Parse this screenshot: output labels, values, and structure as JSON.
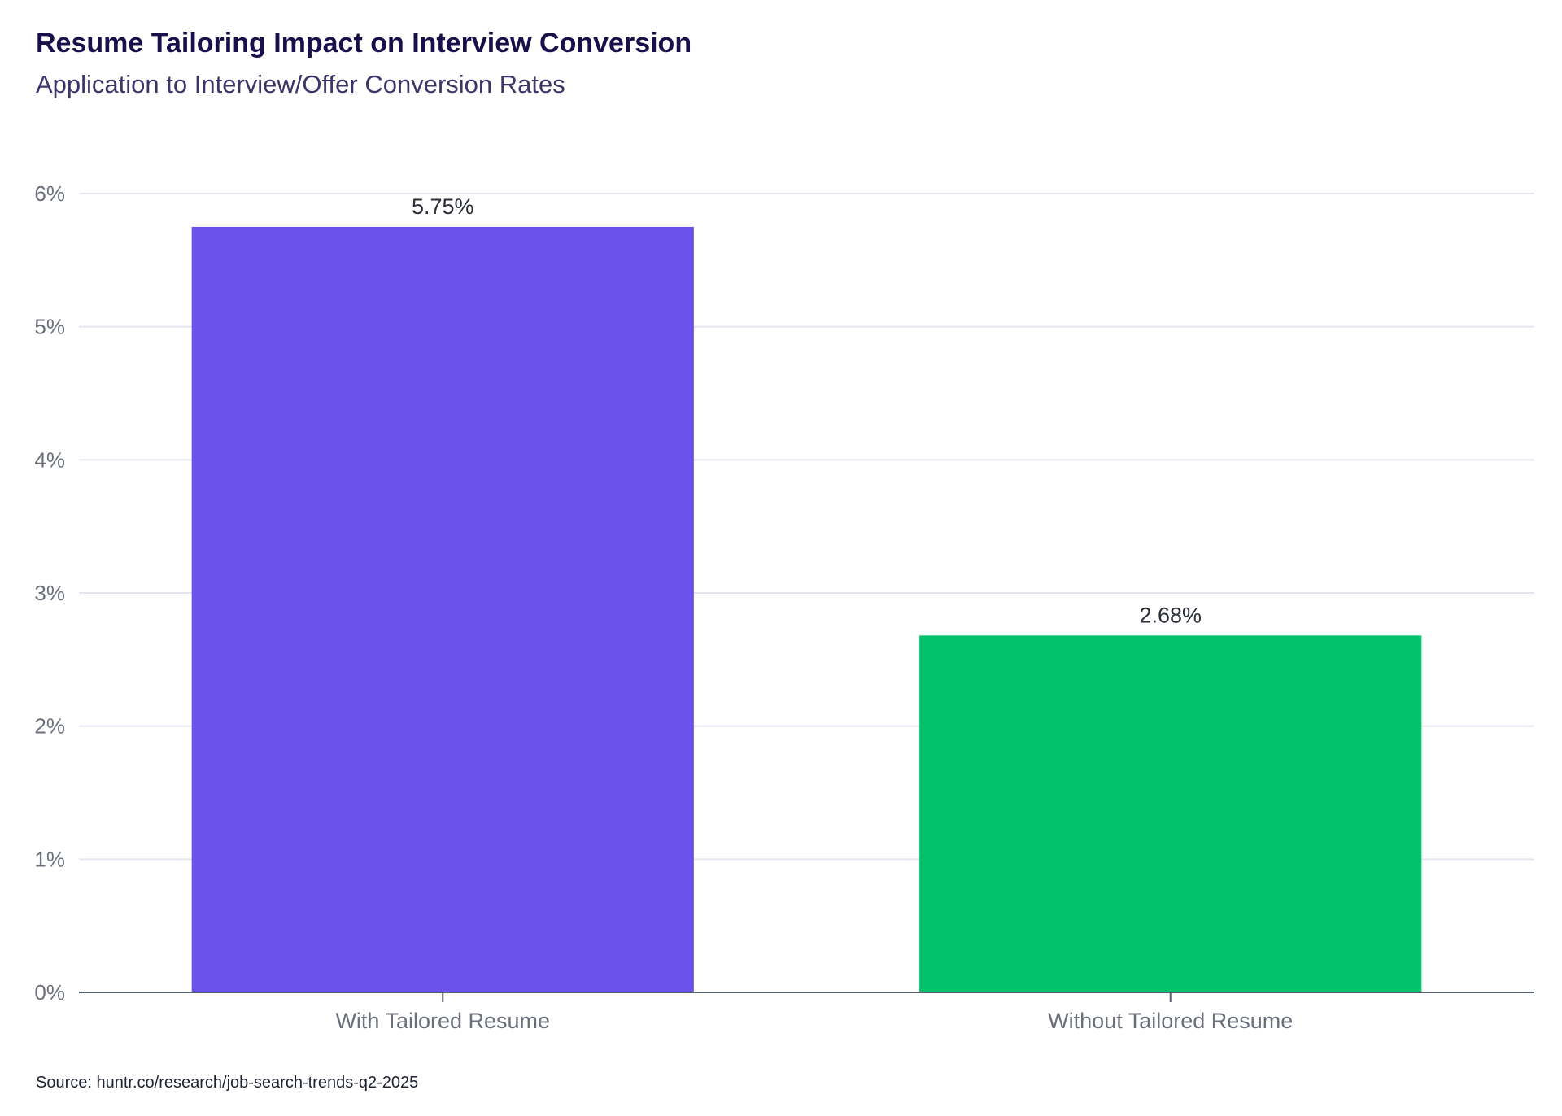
{
  "title": "Resume Tailoring Impact on Interview Conversion",
  "subtitle": "Application to Interview/Offer Conversion Rates",
  "source": "Source: huntr.co/research/job-search-trends-q2-2025",
  "colors": {
    "with_tailored": "#6b52ea",
    "without_tailored": "#00c26a",
    "grid": "#e3e6ef",
    "axis": "#5a5f6e",
    "tick_text": "#6b6f7b",
    "label_text": "#2a2d38"
  },
  "chart_data": {
    "type": "bar",
    "title": "Resume Tailoring Impact on Interview Conversion",
    "subtitle": "Application to Interview/Offer Conversion Rates",
    "categories": [
      "With Tailored Resume",
      "Without Tailored Resume"
    ],
    "values": [
      5.75,
      2.68
    ],
    "value_labels": [
      "5.75%",
      "2.68%"
    ],
    "ylim": [
      0,
      6
    ],
    "yticks": [
      0,
      1,
      2,
      3,
      4,
      5,
      6
    ],
    "ytick_labels": [
      "0%",
      "1%",
      "2%",
      "3%",
      "4%",
      "5%",
      "6%"
    ],
    "xlabel": "",
    "ylabel": "",
    "grid": true,
    "legend": false
  }
}
